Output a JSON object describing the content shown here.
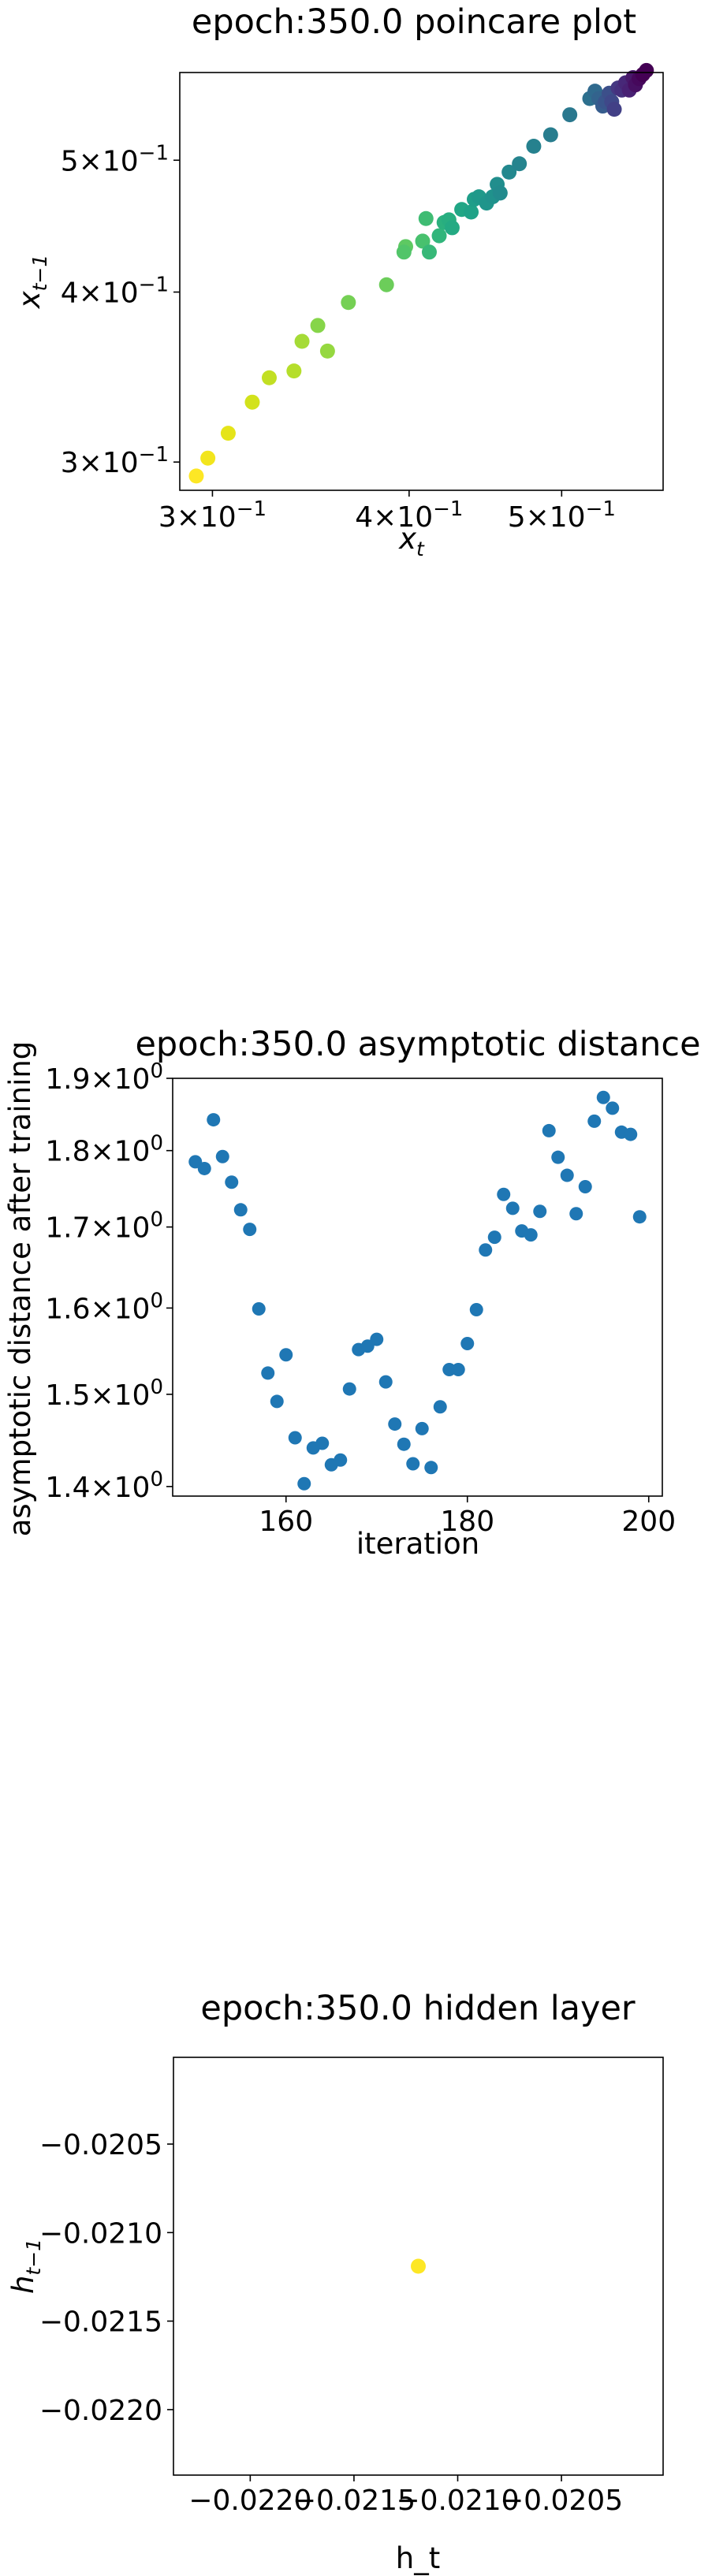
{
  "chart_data": [
    {
      "type": "scatter",
      "title": "epoch:350.0 poincare plot",
      "xlabel": "x",
      "xlabel_sub": "t",
      "ylabel": "x",
      "ylabel_sub": "t−1",
      "xscale": "log",
      "yscale": "log",
      "xlim": [
        0.286,
        0.58
      ],
      "ylim": [
        0.286,
        0.58
      ],
      "grid": false,
      "colormap": "viridis (late points dark purple, early points yellow)",
      "xticks": [
        {
          "value": 0.3,
          "mant": "3",
          "exp": "−1"
        },
        {
          "value": 0.4,
          "mant": "4",
          "exp": "−1"
        },
        {
          "value": 0.5,
          "mant": "5",
          "exp": "−1"
        }
      ],
      "yticks": [
        {
          "value": 0.3,
          "mant": "3",
          "exp": "−1"
        },
        {
          "value": 0.4,
          "mant": "4",
          "exp": "−1"
        },
        {
          "value": 0.5,
          "mant": "5",
          "exp": "−1"
        }
      ],
      "points": [
        {
          "x": 0.293,
          "y": 0.293,
          "color": "#fde725"
        },
        {
          "x": 0.298,
          "y": 0.302,
          "color": "#f2e51d"
        },
        {
          "x": 0.307,
          "y": 0.315,
          "color": "#e5e419"
        },
        {
          "x": 0.318,
          "y": 0.332,
          "color": "#d2e21b"
        },
        {
          "x": 0.326,
          "y": 0.346,
          "color": "#c2df23"
        },
        {
          "x": 0.338,
          "y": 0.35,
          "color": "#b5de2b"
        },
        {
          "x": 0.342,
          "y": 0.368,
          "color": "#a5db36"
        },
        {
          "x": 0.355,
          "y": 0.362,
          "color": "#95d840"
        },
        {
          "x": 0.35,
          "y": 0.378,
          "color": "#86d549"
        },
        {
          "x": 0.366,
          "y": 0.393,
          "color": "#75d054"
        },
        {
          "x": 0.387,
          "y": 0.405,
          "color": "#6ccd5a"
        },
        {
          "x": 0.398,
          "y": 0.432,
          "color": "#5ec962"
        },
        {
          "x": 0.397,
          "y": 0.428,
          "color": "#52c569"
        },
        {
          "x": 0.408,
          "y": 0.436,
          "color": "#48c16e"
        },
        {
          "x": 0.41,
          "y": 0.453,
          "color": "#3fbc73"
        },
        {
          "x": 0.412,
          "y": 0.428,
          "color": "#37b878"
        },
        {
          "x": 0.418,
          "y": 0.44,
          "color": "#31b57b"
        },
        {
          "x": 0.421,
          "y": 0.45,
          "color": "#2cb17e"
        },
        {
          "x": 0.424,
          "y": 0.452,
          "color": "#28ae80"
        },
        {
          "x": 0.426,
          "y": 0.446,
          "color": "#24aa83"
        },
        {
          "x": 0.432,
          "y": 0.46,
          "color": "#21a685"
        },
        {
          "x": 0.438,
          "y": 0.458,
          "color": "#1fa287"
        },
        {
          "x": 0.44,
          "y": 0.468,
          "color": "#1f9e89"
        },
        {
          "x": 0.443,
          "y": 0.47,
          "color": "#1f998a"
        },
        {
          "x": 0.448,
          "y": 0.465,
          "color": "#1f958b"
        },
        {
          "x": 0.452,
          "y": 0.47,
          "color": "#20928c"
        },
        {
          "x": 0.455,
          "y": 0.48,
          "color": "#218e8d"
        },
        {
          "x": 0.457,
          "y": 0.473,
          "color": "#228b8d"
        },
        {
          "x": 0.463,
          "y": 0.49,
          "color": "#23888e"
        },
        {
          "x": 0.47,
          "y": 0.497,
          "color": "#25848e"
        },
        {
          "x": 0.48,
          "y": 0.512,
          "color": "#26818e"
        },
        {
          "x": 0.492,
          "y": 0.522,
          "color": "#287d8e"
        },
        {
          "x": 0.506,
          "y": 0.54,
          "color": "#2a788e"
        },
        {
          "x": 0.521,
          "y": 0.555,
          "color": "#2d708e"
        },
        {
          "x": 0.525,
          "y": 0.562,
          "color": "#306a8e"
        },
        {
          "x": 0.528,
          "y": 0.555,
          "color": "#33638d"
        },
        {
          "x": 0.531,
          "y": 0.548,
          "color": "#365c8d"
        },
        {
          "x": 0.533,
          "y": 0.552,
          "color": "#39558c"
        },
        {
          "x": 0.536,
          "y": 0.56,
          "color": "#3c4f8a"
        },
        {
          "x": 0.538,
          "y": 0.552,
          "color": "#3f4889"
        },
        {
          "x": 0.54,
          "y": 0.545,
          "color": "#424086"
        },
        {
          "x": 0.543,
          "y": 0.565,
          "color": "#453882"
        },
        {
          "x": 0.546,
          "y": 0.563,
          "color": "#46307e"
        },
        {
          "x": 0.549,
          "y": 0.57,
          "color": "#472878"
        },
        {
          "x": 0.552,
          "y": 0.563,
          "color": "#482173"
        },
        {
          "x": 0.555,
          "y": 0.575,
          "color": "#48186a"
        },
        {
          "x": 0.557,
          "y": 0.568,
          "color": "#471063"
        },
        {
          "x": 0.56,
          "y": 0.574,
          "color": "#46085c"
        },
        {
          "x": 0.563,
          "y": 0.578,
          "color": "#440154"
        },
        {
          "x": 0.566,
          "y": 0.582,
          "color": "#440154"
        }
      ]
    },
    {
      "type": "scatter",
      "title": "epoch:350.0 asymptotic distance",
      "xlabel": "iteration",
      "ylabel": "asymptotic distance after training",
      "xscale": "linear",
      "yscale": "log",
      "xlim": [
        147.5,
        201.5
      ],
      "ylim": [
        1.39,
        1.9
      ],
      "grid": false,
      "point_color": "#1f77b4",
      "xticks": [
        160,
        180,
        200
      ],
      "yticks": [
        {
          "value": 1.4,
          "mant": "1.4",
          "exp": "0"
        },
        {
          "value": 1.5,
          "mant": "1.5",
          "exp": "0"
        },
        {
          "value": 1.6,
          "mant": "1.6",
          "exp": "0"
        },
        {
          "value": 1.7,
          "mant": "1.7",
          "exp": "0"
        },
        {
          "value": 1.8,
          "mant": "1.8",
          "exp": "0"
        },
        {
          "value": 1.9,
          "mant": "1.9",
          "exp": "0"
        }
      ],
      "x": [
        150,
        151,
        152,
        153,
        154,
        155,
        156,
        157,
        158,
        159,
        160,
        161,
        162,
        163,
        164,
        165,
        166,
        167,
        168,
        169,
        170,
        171,
        172,
        173,
        174,
        175,
        176,
        177,
        178,
        179,
        180,
        181,
        182,
        183,
        184,
        185,
        186,
        187,
        188,
        189,
        190,
        191,
        192,
        193,
        194,
        195,
        196,
        197,
        198,
        199
      ],
      "y": [
        1.785,
        1.776,
        1.842,
        1.792,
        1.758,
        1.722,
        1.697,
        1.599,
        1.524,
        1.492,
        1.545,
        1.452,
        1.403,
        1.441,
        1.446,
        1.423,
        1.428,
        1.506,
        1.551,
        1.555,
        1.563,
        1.514,
        1.467,
        1.445,
        1.424,
        1.462,
        1.42,
        1.486,
        1.528,
        1.528,
        1.558,
        1.598,
        1.671,
        1.687,
        1.742,
        1.724,
        1.695,
        1.69,
        1.72,
        1.827,
        1.791,
        1.767,
        1.717,
        1.752,
        1.84,
        1.873,
        1.858,
        1.825,
        1.822,
        1.713
      ]
    },
    {
      "type": "scatter",
      "title": "epoch:350.0 hidden layer",
      "xlabel": "h_t",
      "ylabel": "h",
      "ylabel_sub": "t−1",
      "xscale": "linear",
      "yscale": "linear",
      "xlim": [
        -0.02237,
        -0.02001
      ],
      "ylim": [
        -0.02237,
        -0.02001
      ],
      "grid": false,
      "xticks": [
        {
          "value": -0.022,
          "label": "−0.0220"
        },
        {
          "value": -0.0215,
          "label": "−0.0215"
        },
        {
          "value": -0.021,
          "label": "−0.0210"
        },
        {
          "value": -0.0205,
          "label": "−0.0205"
        }
      ],
      "yticks": [
        {
          "value": -0.0205,
          "label": "−0.0205"
        },
        {
          "value": -0.021,
          "label": "−0.0210"
        },
        {
          "value": -0.0215,
          "label": "−0.0215"
        },
        {
          "value": -0.022,
          "label": "−0.0220"
        }
      ],
      "points": [
        {
          "x": -0.02119,
          "y": -0.02119,
          "color": "#fde725"
        }
      ]
    }
  ]
}
